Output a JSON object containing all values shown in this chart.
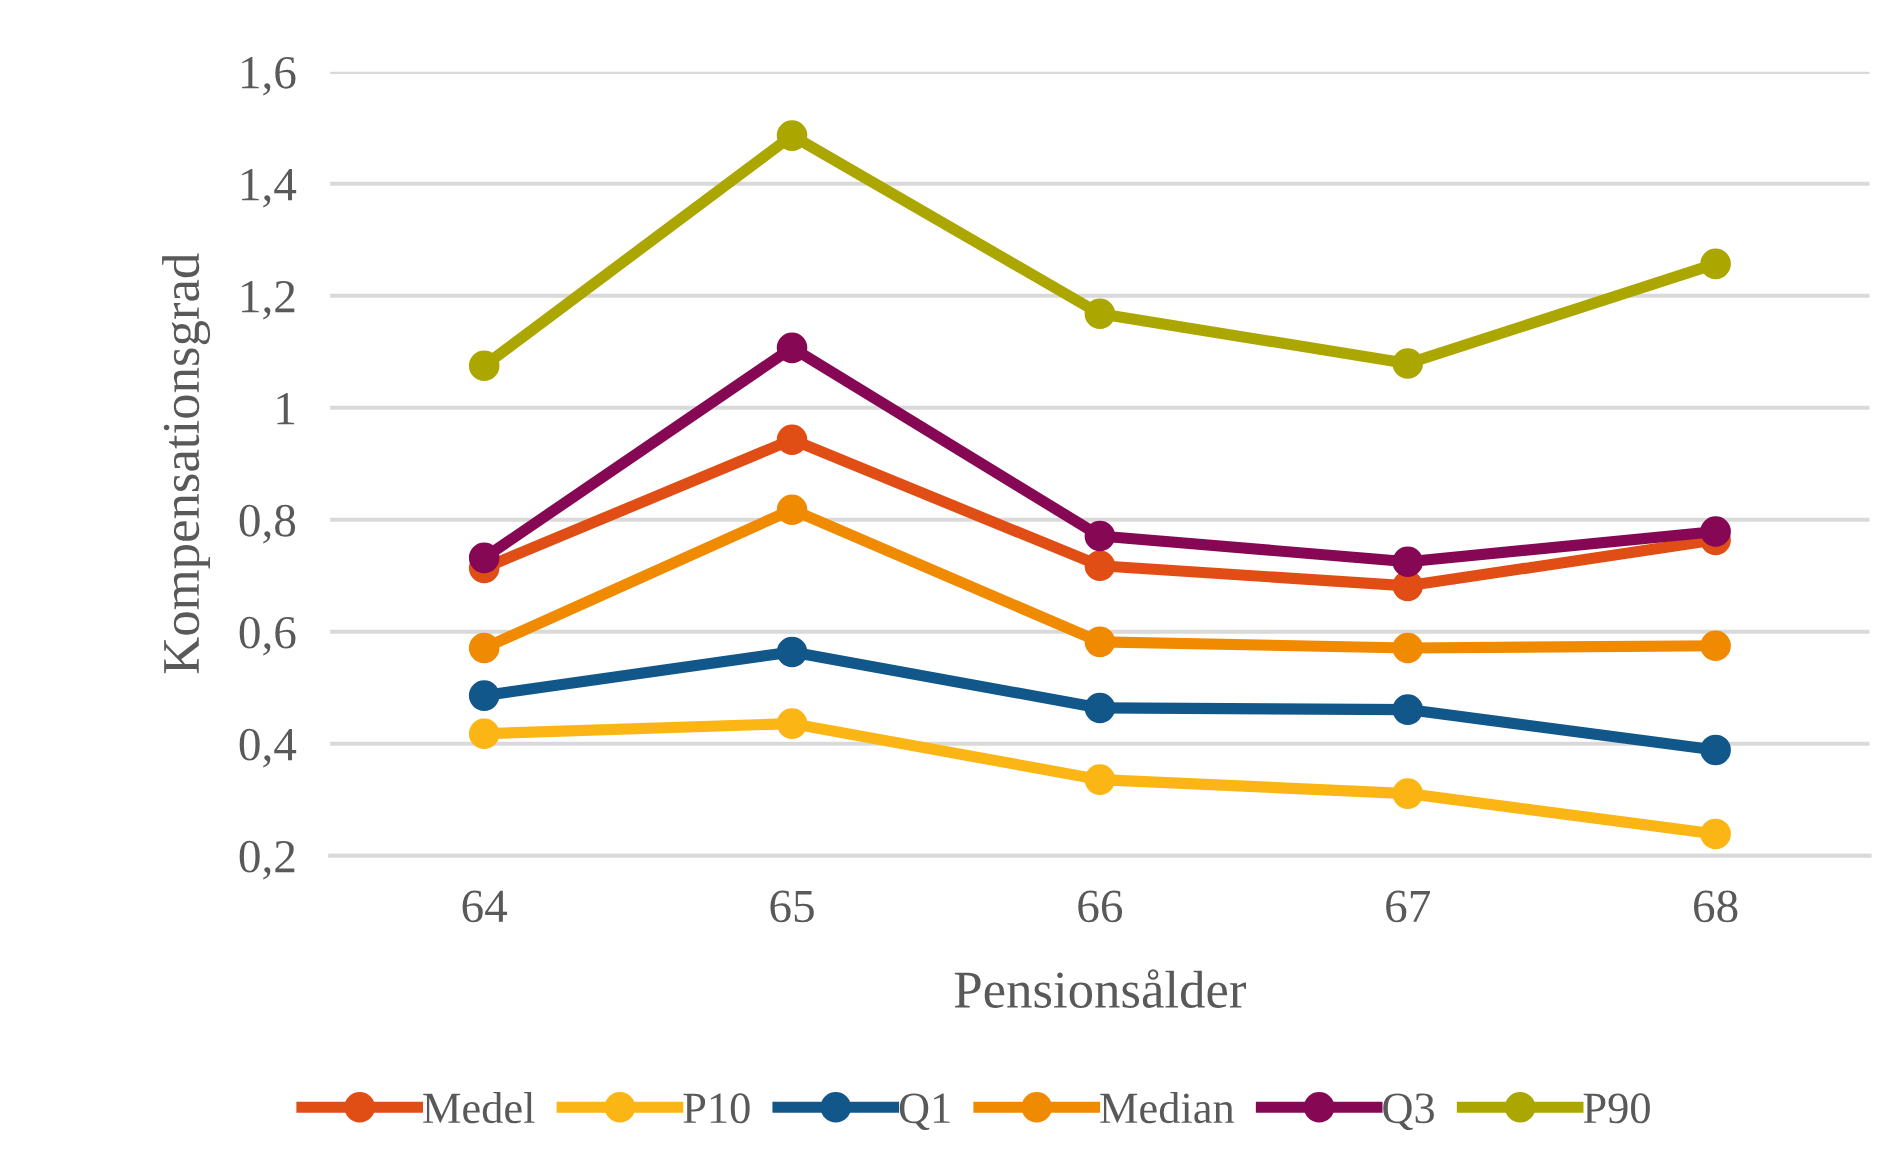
{
  "chart_data": {
    "type": "line",
    "xlabel": "Pensionsålder",
    "ylabel": "Kompensationsgrad",
    "categories": [
      "64",
      "65",
      "66",
      "67",
      "68"
    ],
    "series": [
      {
        "name": "Medel",
        "color": "#e04e16",
        "values": [
          0.714,
          0.943,
          0.718,
          0.682,
          0.764
        ]
      },
      {
        "name": "P10",
        "color": "#fbb515",
        "values": [
          0.418,
          0.436,
          0.336,
          0.311,
          0.239
        ]
      },
      {
        "name": "Q1",
        "color": "#12578a",
        "values": [
          0.486,
          0.564,
          0.464,
          0.461,
          0.389
        ]
      },
      {
        "name": "Median",
        "color": "#f08a00",
        "values": [
          0.571,
          0.818,
          0.582,
          0.571,
          0.575
        ]
      },
      {
        "name": "Q3",
        "color": "#860855",
        "values": [
          0.732,
          1.107,
          0.771,
          0.725,
          0.779
        ]
      },
      {
        "name": "P90",
        "color": "#aca700",
        "values": [
          1.075,
          1.486,
          1.168,
          1.079,
          1.257
        ]
      }
    ],
    "ylim": [
      0.2,
      1.6
    ],
    "yticks": [
      {
        "value": 0.2,
        "label": "0,2"
      },
      {
        "value": 0.4,
        "label": "0,4"
      },
      {
        "value": 0.6,
        "label": "0,6"
      },
      {
        "value": 0.8,
        "label": "0,8"
      },
      {
        "value": 1,
        "label": "1"
      },
      {
        "value": 1.2,
        "label": "1,2"
      },
      {
        "value": 1.4,
        "label": "1,4"
      },
      {
        "value": 1.6,
        "label": "1,6"
      }
    ],
    "grid": "y",
    "legend": "bottom",
    "marker": "circle",
    "line_style": "solid"
  }
}
